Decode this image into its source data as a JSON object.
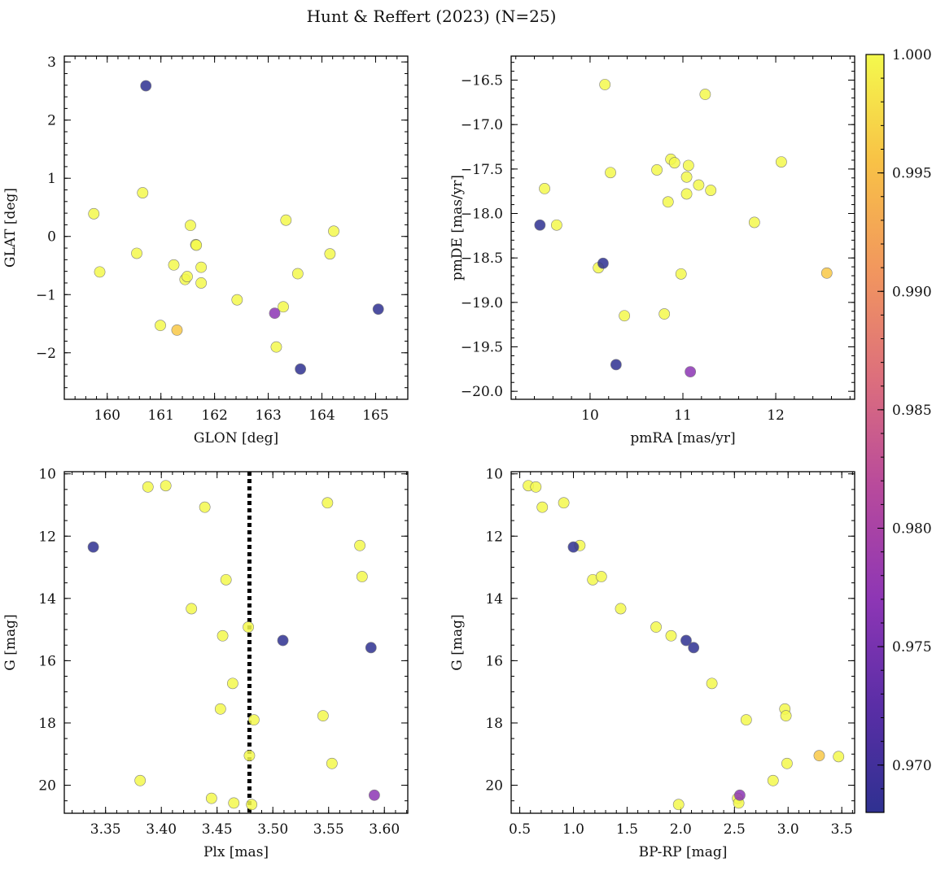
{
  "chart_data": {
    "type": "scatter",
    "title": "Hunt & Reffert (2023) (N=25)",
    "colorbar": {
      "min": 0.968,
      "max": 1.0,
      "ticks": [
        0.97,
        0.975,
        0.98,
        0.985,
        0.99,
        0.995,
        1.0
      ],
      "tick_labels": [
        "0.970",
        "0.975",
        "0.980",
        "0.985",
        "0.990",
        "0.995",
        "1.000"
      ],
      "colormap": "plasma"
    },
    "panels": [
      {
        "id": "glon-glat",
        "xlabel": "GLON [deg]",
        "ylabel": "GLAT [deg]",
        "xlim": [
          159.2,
          165.6
        ],
        "ylim": [
          -2.8,
          3.1
        ],
        "xticks": [
          160,
          161,
          162,
          163,
          164,
          165
        ],
        "xtick_labels": [
          "160",
          "161",
          "162",
          "163",
          "164",
          "165"
        ],
        "xminor": 0.2,
        "yticks": [
          -2,
          -1,
          0,
          1,
          2,
          3
        ],
        "ytick_labels": [
          "−2",
          "−1",
          "0",
          "1",
          "2",
          "3"
        ],
        "yminor": 0.2,
        "invert_y": false,
        "points": [
          {
            "x": 160.72,
            "y": 2.59,
            "c": 0.968
          },
          {
            "x": 165.05,
            "y": -1.25,
            "c": 0.968
          },
          {
            "x": 163.6,
            "y": -2.28,
            "c": 0.968
          },
          {
            "x": 163.12,
            "y": -1.32,
            "c": 0.977
          },
          {
            "x": 161.3,
            "y": -1.61,
            "c": 0.996
          },
          {
            "x": 159.75,
            "y": 0.39,
            "c": 1.0
          },
          {
            "x": 159.86,
            "y": -0.61,
            "c": 1.0
          },
          {
            "x": 160.55,
            "y": -0.29,
            "c": 1.0
          },
          {
            "x": 160.66,
            "y": 0.75,
            "c": 1.0
          },
          {
            "x": 160.99,
            "y": -1.53,
            "c": 1.0
          },
          {
            "x": 161.24,
            "y": -0.49,
            "c": 1.0
          },
          {
            "x": 161.45,
            "y": -0.74,
            "c": 1.0
          },
          {
            "x": 161.49,
            "y": -0.69,
            "c": 1.0
          },
          {
            "x": 161.55,
            "y": 0.19,
            "c": 1.0
          },
          {
            "x": 161.65,
            "y": -0.14,
            "c": 1.0
          },
          {
            "x": 161.66,
            "y": -0.15,
            "c": 1.0
          },
          {
            "x": 161.75,
            "y": -0.53,
            "c": 1.0
          },
          {
            "x": 161.75,
            "y": -0.8,
            "c": 1.0
          },
          {
            "x": 162.42,
            "y": -1.09,
            "c": 1.0
          },
          {
            "x": 163.15,
            "y": -1.9,
            "c": 1.0
          },
          {
            "x": 163.28,
            "y": -1.21,
            "c": 1.0
          },
          {
            "x": 163.33,
            "y": 0.28,
            "c": 1.0
          },
          {
            "x": 163.55,
            "y": -0.64,
            "c": 1.0
          },
          {
            "x": 164.15,
            "y": -0.3,
            "c": 1.0
          },
          {
            "x": 164.22,
            "y": 0.09,
            "c": 1.0
          }
        ]
      },
      {
        "id": "pmra-pmde",
        "xlabel": "pmRA [mas/yr]",
        "ylabel": "pmDE [mas/yr]",
        "xlim": [
          9.15,
          12.85
        ],
        "ylim": [
          -20.09,
          -16.23
        ],
        "xticks": [
          10,
          11,
          12
        ],
        "xtick_labels": [
          "10",
          "11",
          "12"
        ],
        "xminor": 0.2,
        "yticks": [
          -20.0,
          -19.5,
          -19.0,
          -18.5,
          -18.0,
          -17.5,
          -17.0,
          -16.5
        ],
        "ytick_labels": [
          "−20.0",
          "−19.5",
          "−19.0",
          "−18.5",
          "−18.0",
          "−17.5",
          "−17.0",
          "−16.5"
        ],
        "yminor": 0.1,
        "invert_y": false,
        "points": [
          {
            "x": 9.46,
            "y": -18.13,
            "c": 0.968
          },
          {
            "x": 10.14,
            "y": -18.56,
            "c": 0.968
          },
          {
            "x": 10.28,
            "y": -19.7,
            "c": 0.968
          },
          {
            "x": 11.08,
            "y": -19.78,
            "c": 0.977
          },
          {
            "x": 12.55,
            "y": -18.67,
            "c": 0.996
          },
          {
            "x": 9.51,
            "y": -17.72,
            "c": 1.0
          },
          {
            "x": 9.64,
            "y": -18.13,
            "c": 1.0
          },
          {
            "x": 10.09,
            "y": -18.61,
            "c": 1.0
          },
          {
            "x": 10.16,
            "y": -16.55,
            "c": 1.0
          },
          {
            "x": 10.22,
            "y": -17.54,
            "c": 1.0
          },
          {
            "x": 10.37,
            "y": -19.15,
            "c": 1.0
          },
          {
            "x": 10.72,
            "y": -17.51,
            "c": 1.0
          },
          {
            "x": 10.8,
            "y": -19.13,
            "c": 1.0
          },
          {
            "x": 10.84,
            "y": -17.87,
            "c": 1.0
          },
          {
            "x": 10.87,
            "y": -17.39,
            "c": 1.0
          },
          {
            "x": 10.91,
            "y": -17.43,
            "c": 1.0
          },
          {
            "x": 10.98,
            "y": -18.68,
            "c": 1.0
          },
          {
            "x": 11.04,
            "y": -17.59,
            "c": 1.0
          },
          {
            "x": 11.04,
            "y": -17.78,
            "c": 1.0
          },
          {
            "x": 11.06,
            "y": -17.46,
            "c": 1.0
          },
          {
            "x": 11.17,
            "y": -17.68,
            "c": 1.0
          },
          {
            "x": 11.24,
            "y": -16.66,
            "c": 1.0
          },
          {
            "x": 11.3,
            "y": -17.74,
            "c": 1.0
          },
          {
            "x": 11.77,
            "y": -18.1,
            "c": 1.0
          },
          {
            "x": 12.06,
            "y": -17.42,
            "c": 1.0
          }
        ]
      },
      {
        "id": "plx-g",
        "xlabel": "Plx [mas]",
        "ylabel": "G [mag]",
        "xlim": [
          3.313,
          3.621
        ],
        "ylim": [
          9.93,
          20.9
        ],
        "xticks": [
          3.35,
          3.4,
          3.45,
          3.5,
          3.55,
          3.6
        ],
        "xtick_labels": [
          "3.35",
          "3.40",
          "3.45",
          "3.50",
          "3.55",
          "3.60"
        ],
        "xminor": 0.01,
        "yticks": [
          10,
          12,
          14,
          16,
          18,
          20
        ],
        "ytick_labels": [
          "10",
          "12",
          "14",
          "16",
          "18",
          "20"
        ],
        "yminor": 0.5,
        "invert_y": true,
        "vline": 3.479,
        "points": [
          {
            "x": 3.339,
            "y": 12.35,
            "c": 0.968
          },
          {
            "x": 3.509,
            "y": 15.35,
            "c": 0.968
          },
          {
            "x": 3.588,
            "y": 15.58,
            "c": 0.968
          },
          {
            "x": 3.591,
            "y": 20.32,
            "c": 0.977
          },
          {
            "x": 3.381,
            "y": 19.85,
            "c": 1.0
          },
          {
            "x": 3.388,
            "y": 10.42,
            "c": 1.0
          },
          {
            "x": 3.404,
            "y": 10.38,
            "c": 1.0
          },
          {
            "x": 3.427,
            "y": 14.33,
            "c": 1.0
          },
          {
            "x": 3.439,
            "y": 11.07,
            "c": 1.0
          },
          {
            "x": 3.445,
            "y": 20.42,
            "c": 1.0
          },
          {
            "x": 3.453,
            "y": 17.55,
            "c": 1.0
          },
          {
            "x": 3.455,
            "y": 15.2,
            "c": 1.0
          },
          {
            "x": 3.458,
            "y": 13.4,
            "c": 1.0
          },
          {
            "x": 3.464,
            "y": 16.73,
            "c": 1.0
          },
          {
            "x": 3.465,
            "y": 20.57,
            "c": 1.0
          },
          {
            "x": 3.478,
            "y": 14.92,
            "c": 1.0
          },
          {
            "x": 3.479,
            "y": 19.05,
            "c": 1.0
          },
          {
            "x": 3.481,
            "y": 20.62,
            "c": 1.0
          },
          {
            "x": 3.483,
            "y": 17.9,
            "c": 1.0
          },
          {
            "x": 3.545,
            "y": 17.77,
            "c": 1.0
          },
          {
            "x": 3.549,
            "y": 10.93,
            "c": 1.0
          },
          {
            "x": 3.553,
            "y": 19.3,
            "c": 1.0
          },
          {
            "x": 3.578,
            "y": 12.3,
            "c": 1.0
          },
          {
            "x": 3.58,
            "y": 13.3,
            "c": 1.0
          }
        ]
      },
      {
        "id": "bprp-g",
        "xlabel": "BP-RP [mag]",
        "ylabel": "G [mag]",
        "xlim": [
          0.42,
          3.62
        ],
        "ylim": [
          9.93,
          20.9
        ],
        "xticks": [
          0.5,
          1.0,
          1.5,
          2.0,
          2.5,
          3.0,
          3.5
        ],
        "xtick_labels": [
          "0.5",
          "1.0",
          "1.5",
          "2.0",
          "2.5",
          "3.0",
          "3.5"
        ],
        "xminor": 0.1,
        "yticks": [
          10,
          12,
          14,
          16,
          18,
          20
        ],
        "ytick_labels": [
          "10",
          "12",
          "14",
          "16",
          "18",
          "20"
        ],
        "yminor": 0.5,
        "invert_y": true,
        "points": [
          {
            "x": 1.0,
            "y": 12.35,
            "c": 0.968
          },
          {
            "x": 2.05,
            "y": 15.35,
            "c": 0.968
          },
          {
            "x": 2.12,
            "y": 15.58,
            "c": 0.968
          },
          {
            "x": 2.55,
            "y": 20.32,
            "c": 0.977
          },
          {
            "x": 3.29,
            "y": 19.05,
            "c": 0.996
          },
          {
            "x": 0.58,
            "y": 10.38,
            "c": 1.0
          },
          {
            "x": 0.65,
            "y": 10.42,
            "c": 1.0
          },
          {
            "x": 0.71,
            "y": 11.07,
            "c": 1.0
          },
          {
            "x": 0.91,
            "y": 10.93,
            "c": 1.0
          },
          {
            "x": 1.06,
            "y": 12.3,
            "c": 1.0
          },
          {
            "x": 1.18,
            "y": 13.4,
            "c": 1.0
          },
          {
            "x": 1.26,
            "y": 13.3,
            "c": 1.0
          },
          {
            "x": 1.44,
            "y": 14.33,
            "c": 1.0
          },
          {
            "x": 1.77,
            "y": 14.92,
            "c": 1.0
          },
          {
            "x": 1.91,
            "y": 15.2,
            "c": 1.0
          },
          {
            "x": 1.98,
            "y": 20.62,
            "c": 1.0
          },
          {
            "x": 2.29,
            "y": 16.73,
            "c": 1.0
          },
          {
            "x": 2.53,
            "y": 20.42,
            "c": 1.0
          },
          {
            "x": 2.54,
            "y": 20.57,
            "c": 1.0
          },
          {
            "x": 2.61,
            "y": 17.9,
            "c": 1.0
          },
          {
            "x": 2.86,
            "y": 19.85,
            "c": 1.0
          },
          {
            "x": 2.97,
            "y": 17.55,
            "c": 1.0
          },
          {
            "x": 2.98,
            "y": 17.77,
            "c": 1.0
          },
          {
            "x": 2.99,
            "y": 19.3,
            "c": 1.0
          },
          {
            "x": 3.47,
            "y": 19.08,
            "c": 1.0
          }
        ]
      }
    ]
  }
}
